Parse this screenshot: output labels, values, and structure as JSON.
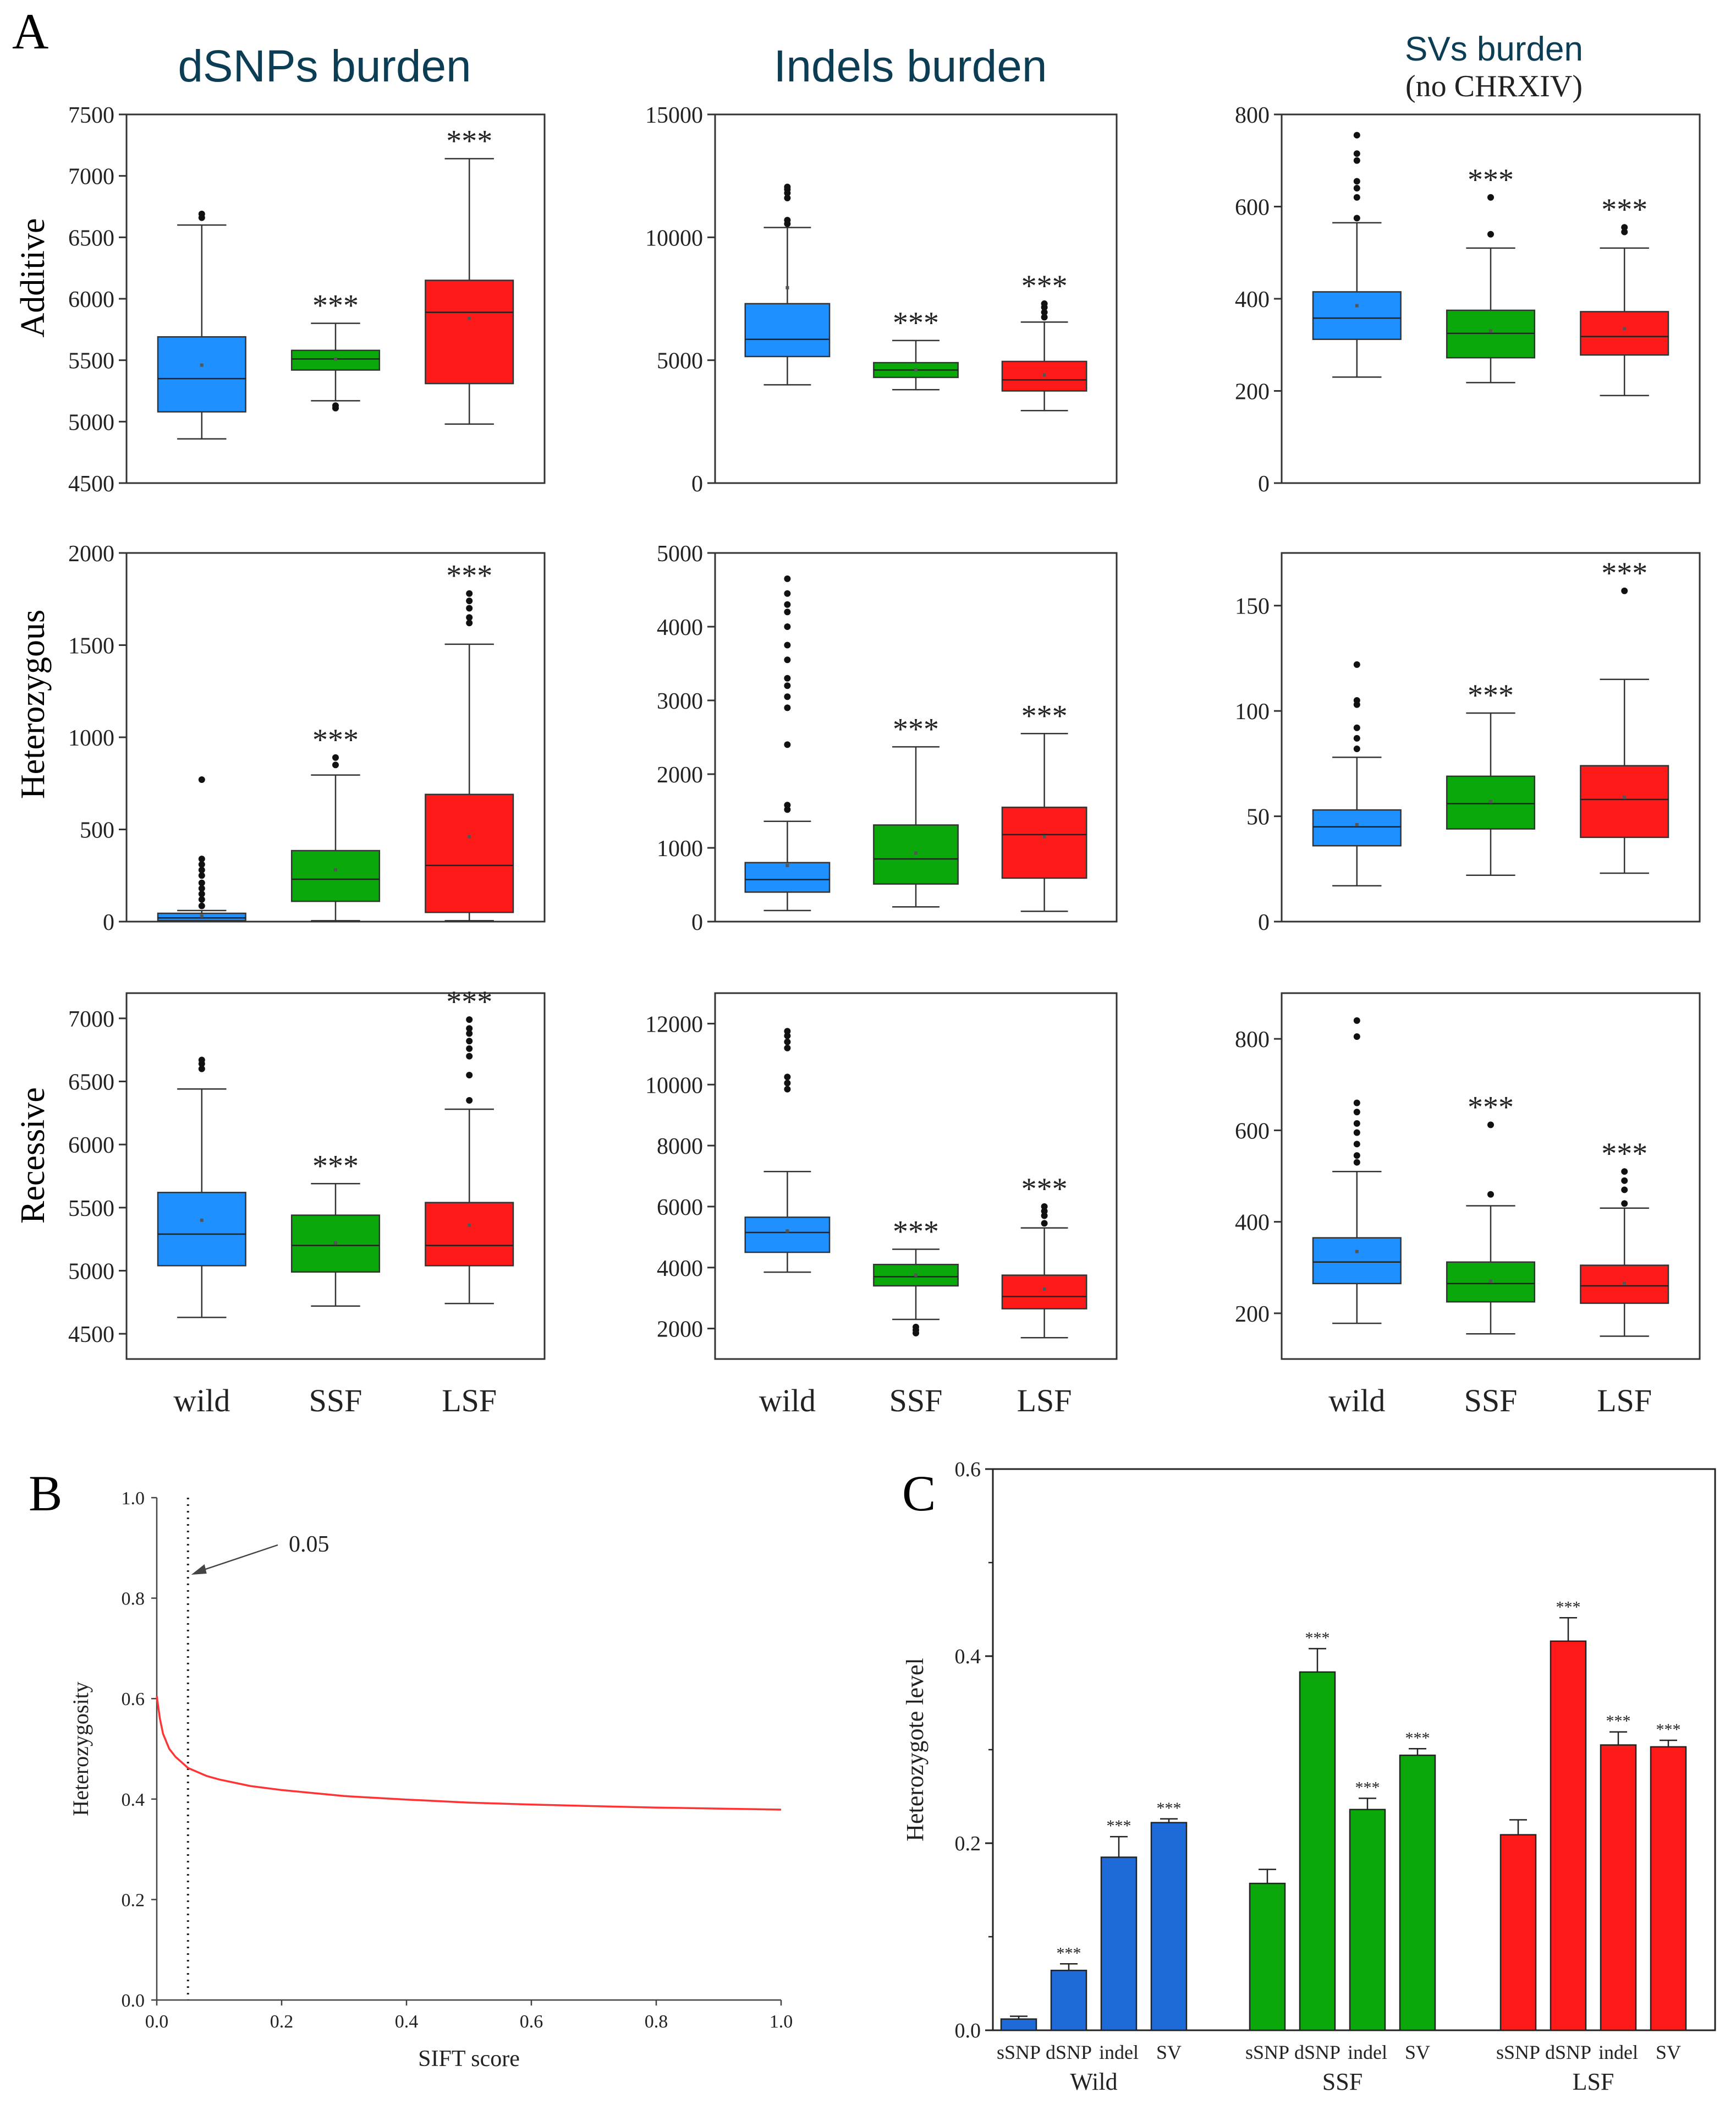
{
  "panel_labels": {
    "a": "A",
    "b": "B",
    "c": "C"
  },
  "column_titles": {
    "dsnps": "dSNPs burden",
    "indels": "Indels burden",
    "svs": "SVs burden",
    "svs_sub": "(no CHRXIV)"
  },
  "row_labels": {
    "additive": "Additive",
    "heterozygous": "Heterozygous",
    "recessive": "Recessive"
  },
  "group_labels": [
    "wild",
    "SSF",
    "LSF"
  ],
  "colors": {
    "wild": "#1e90ff",
    "ssf": "#0aa80a",
    "lsf": "#ff1a1a",
    "c_blue": "#1e6ad8",
    "c_green": "#0aa80a",
    "c_red": "#ff1a1a",
    "curve": "#ff3333"
  },
  "chart_data": [
    {
      "type": "box",
      "id": "a_add_dsnp",
      "title": "dSNPs burden",
      "ylabel": "Additive",
      "ylim": [
        4500,
        7500
      ],
      "yticks": [
        "4500",
        "5000",
        "5500",
        "6000",
        "6500",
        "7000",
        "7500"
      ],
      "categories": [
        "wild",
        "SSF",
        "LSF"
      ],
      "boxes": [
        {
          "min": 4860,
          "q1": 5080,
          "median": 5350,
          "q3": 5690,
          "max": 6600,
          "mean": 5460,
          "outliers": [
            6660,
            6690
          ],
          "sig": ""
        },
        {
          "min": 5170,
          "q1": 5420,
          "median": 5510,
          "q3": 5580,
          "max": 5800,
          "mean": 5510,
          "outliers": [
            5110,
            5130
          ],
          "sig": "***"
        },
        {
          "min": 4980,
          "q1": 5310,
          "median": 5890,
          "q3": 6150,
          "max": 7140,
          "mean": 5840,
          "outliers": [],
          "sig": "***"
        }
      ]
    },
    {
      "type": "box",
      "id": "a_add_indel",
      "title": "Indels burden",
      "ylim": [
        0,
        15000
      ],
      "yticks": [
        "0",
        "5000",
        "10000",
        "15000"
      ],
      "categories": [
        "wild",
        "SSF",
        "LSF"
      ],
      "boxes": [
        {
          "min": 4000,
          "q1": 5150,
          "median": 5850,
          "q3": 7300,
          "max": 10400,
          "mean": 7950,
          "outliers": [
            10550,
            10700,
            11600,
            11800,
            11950,
            12050
          ],
          "sig": ""
        },
        {
          "min": 3800,
          "q1": 4300,
          "median": 4600,
          "q3": 4900,
          "max": 5800,
          "mean": 4600,
          "outliers": [],
          "sig": "***"
        },
        {
          "min": 2950,
          "q1": 3750,
          "median": 4200,
          "q3": 4950,
          "max": 6550,
          "mean": 4400,
          "outliers": [
            6750,
            6950,
            7150,
            7300
          ],
          "sig": "***"
        }
      ]
    },
    {
      "type": "box",
      "id": "a_add_sv",
      "title": "SVs burden",
      "ylim": [
        0,
        800
      ],
      "yticks": [
        "0",
        "200",
        "400",
        "600",
        "800"
      ],
      "categories": [
        "wild",
        "SSF",
        "LSF"
      ],
      "boxes": [
        {
          "min": 230,
          "q1": 312,
          "median": 358,
          "q3": 415,
          "max": 565,
          "mean": 385,
          "outliers": [
            575,
            620,
            640,
            655,
            700,
            715,
            755
          ],
          "sig": ""
        },
        {
          "min": 218,
          "q1": 272,
          "median": 325,
          "q3": 375,
          "max": 510,
          "mean": 330,
          "outliers": [
            540,
            620
          ],
          "sig": "***"
        },
        {
          "min": 190,
          "q1": 278,
          "median": 318,
          "q3": 372,
          "max": 510,
          "mean": 335,
          "outliers": [
            545,
            555
          ],
          "sig": "***"
        }
      ]
    },
    {
      "type": "box",
      "id": "a_het_dsnp",
      "ylabel": "Heterozygous",
      "ylim": [
        0,
        2000
      ],
      "yticks": [
        "0",
        "500",
        "1000",
        "1500",
        "2000"
      ],
      "categories": [
        "wild",
        "SSF",
        "LSF"
      ],
      "boxes": [
        {
          "min": 0,
          "q1": 5,
          "median": 20,
          "q3": 45,
          "max": 60,
          "mean": 30,
          "outliers": [
            85,
            120,
            150,
            180,
            210,
            250,
            280,
            310,
            340,
            770
          ],
          "sig": ""
        },
        {
          "min": 5,
          "q1": 110,
          "median": 230,
          "q3": 385,
          "max": 795,
          "mean": 280,
          "outliers": [
            850,
            890
          ],
          "sig": "***"
        },
        {
          "min": 5,
          "q1": 50,
          "median": 305,
          "q3": 690,
          "max": 1505,
          "mean": 460,
          "outliers": [
            1620,
            1650,
            1700,
            1740,
            1780
          ],
          "sig": "***"
        }
      ]
    },
    {
      "type": "box",
      "id": "a_het_indel",
      "ylim": [
        0,
        5000
      ],
      "yticks": [
        "0",
        "1000",
        "2000",
        "3000",
        "4000",
        "5000"
      ],
      "categories": [
        "wild",
        "SSF",
        "LSF"
      ],
      "boxes": [
        {
          "min": 150,
          "q1": 400,
          "median": 570,
          "q3": 800,
          "max": 1360,
          "mean": 760,
          "outliers": [
            1520,
            1580,
            2400,
            2900,
            3050,
            3200,
            3300,
            3550,
            3750,
            4000,
            4200,
            4300,
            4450,
            4650
          ],
          "sig": ""
        },
        {
          "min": 200,
          "q1": 510,
          "median": 850,
          "q3": 1310,
          "max": 2370,
          "mean": 930,
          "outliers": [],
          "sig": "***"
        },
        {
          "min": 140,
          "q1": 590,
          "median": 1180,
          "q3": 1550,
          "max": 2550,
          "mean": 1150,
          "outliers": [],
          "sig": "***"
        }
      ]
    },
    {
      "type": "box",
      "id": "a_het_sv",
      "ylim": [
        0,
        175
      ],
      "yticks": [
        "0",
        "50",
        "100",
        "150"
      ],
      "categories": [
        "wild",
        "SSF",
        "LSF"
      ],
      "boxes": [
        {
          "min": 17,
          "q1": 36,
          "median": 45,
          "q3": 53,
          "max": 78,
          "mean": 46,
          "outliers": [
            82,
            87,
            92,
            103,
            105,
            122
          ],
          "sig": ""
        },
        {
          "min": 22,
          "q1": 44,
          "median": 56,
          "q3": 69,
          "max": 99,
          "mean": 57,
          "outliers": [],
          "sig": "***"
        },
        {
          "min": 23,
          "q1": 40,
          "median": 58,
          "q3": 74,
          "max": 115,
          "mean": 59,
          "outliers": [
            157
          ],
          "sig": "***"
        }
      ]
    },
    {
      "type": "box",
      "id": "a_rec_dsnp",
      "ylabel": "Recessive",
      "ylim": [
        4300,
        7200
      ],
      "yticks": [
        "4500",
        "5000",
        "5500",
        "6000",
        "6500",
        "7000"
      ],
      "categories": [
        "wild",
        "SSF",
        "LSF"
      ],
      "xlabels": [
        "wild",
        "SSF",
        "LSF"
      ],
      "boxes": [
        {
          "min": 4630,
          "q1": 5040,
          "median": 5290,
          "q3": 5620,
          "max": 6440,
          "mean": 5400,
          "outliers": [
            6600,
            6640,
            6670
          ],
          "sig": ""
        },
        {
          "min": 4720,
          "q1": 4990,
          "median": 5200,
          "q3": 5440,
          "max": 5690,
          "mean": 5220,
          "outliers": [],
          "sig": "***"
        },
        {
          "min": 4740,
          "q1": 5040,
          "median": 5200,
          "q3": 5540,
          "max": 6280,
          "mean": 5360,
          "outliers": [
            6350,
            6550,
            6700,
            6760,
            6820,
            6880,
            6920,
            6990
          ],
          "sig": "***"
        }
      ]
    },
    {
      "type": "box",
      "id": "a_rec_indel",
      "ylim": [
        1000,
        13000
      ],
      "yticks": [
        "2000",
        "4000",
        "6000",
        "8000",
        "10000",
        "12000"
      ],
      "categories": [
        "wild",
        "SSF",
        "LSF"
      ],
      "xlabels": [
        "wild",
        "SSF",
        "LSF"
      ],
      "boxes": [
        {
          "min": 3850,
          "q1": 4500,
          "median": 5150,
          "q3": 5650,
          "max": 7150,
          "mean": 5200,
          "outliers": [
            9850,
            10050,
            10250,
            11200,
            11400,
            11600,
            11750
          ],
          "sig": ""
        },
        {
          "min": 2300,
          "q1": 3400,
          "median": 3700,
          "q3": 4100,
          "max": 4600,
          "mean": 3750,
          "outliers": [
            1850,
            1950,
            2050
          ],
          "sig": "***"
        },
        {
          "min": 1700,
          "q1": 2650,
          "median": 3050,
          "q3": 3750,
          "max": 5300,
          "mean": 3300,
          "outliers": [
            5450,
            5700,
            5850,
            6000
          ],
          "sig": "***"
        }
      ]
    },
    {
      "type": "box",
      "id": "a_rec_sv",
      "ylim": [
        100,
        900
      ],
      "yticks": [
        "200",
        "400",
        "600",
        "800"
      ],
      "categories": [
        "wild",
        "SSF",
        "LSF"
      ],
      "xlabels": [
        "wild",
        "SSF",
        "LSF"
      ],
      "boxes": [
        {
          "min": 178,
          "q1": 265,
          "median": 312,
          "q3": 365,
          "max": 510,
          "mean": 335,
          "outliers": [
            530,
            545,
            570,
            595,
            615,
            640,
            660,
            805,
            840
          ],
          "sig": ""
        },
        {
          "min": 155,
          "q1": 225,
          "median": 265,
          "q3": 312,
          "max": 435,
          "mean": 270,
          "outliers": [
            460,
            612
          ],
          "sig": "***"
        },
        {
          "min": 150,
          "q1": 222,
          "median": 260,
          "q3": 305,
          "max": 430,
          "mean": 265,
          "outliers": [
            440,
            470,
            490,
            510
          ],
          "sig": "***"
        }
      ]
    },
    {
      "type": "line",
      "id": "b_curve",
      "xlabel": "SIFT score",
      "ylabel": "Heterozygosity",
      "xlim": [
        0,
        1
      ],
      "ylim": [
        0,
        1
      ],
      "xticks": [
        "0.0",
        "0.2",
        "0.4",
        "0.6",
        "0.8",
        "1.0"
      ],
      "yticks": [
        "0.0",
        "0.2",
        "0.4",
        "0.6",
        "0.8",
        "1.0"
      ],
      "threshold": 0.05,
      "annotation": "0.05",
      "x": [
        0.0,
        0.005,
        0.01,
        0.02,
        0.03,
        0.05,
        0.08,
        0.1,
        0.15,
        0.2,
        0.3,
        0.4,
        0.5,
        0.6,
        0.7,
        0.8,
        0.9,
        1.0
      ],
      "y": [
        0.605,
        0.56,
        0.53,
        0.5,
        0.484,
        0.462,
        0.446,
        0.439,
        0.426,
        0.418,
        0.406,
        0.399,
        0.393,
        0.389,
        0.386,
        0.383,
        0.381,
        0.379
      ]
    },
    {
      "type": "bar",
      "id": "c_bars",
      "ylabel": "Heterozygote level",
      "ylim": [
        0,
        0.6
      ],
      "yticks": [
        "0.0",
        "0.2",
        "0.4",
        "0.6"
      ],
      "groups": [
        "Wild",
        "SSF",
        "LSF"
      ],
      "categories": [
        "sSNP",
        "dSNP",
        "indel",
        "SV"
      ],
      "series": [
        {
          "name": "Wild",
          "values": [
            0.012,
            0.064,
            0.185,
            0.222
          ],
          "errors": [
            0.003,
            0.007,
            0.022,
            0.004
          ],
          "sig": [
            "",
            "***",
            "***",
            "***"
          ]
        },
        {
          "name": "SSF",
          "values": [
            0.157,
            0.383,
            0.236,
            0.294
          ],
          "errors": [
            0.015,
            0.025,
            0.012,
            0.007
          ],
          "sig": [
            "",
            "***",
            "***",
            "***"
          ]
        },
        {
          "name": "LSF",
          "values": [
            0.209,
            0.416,
            0.305,
            0.303
          ],
          "errors": [
            0.016,
            0.025,
            0.014,
            0.007
          ],
          "sig": [
            "",
            "***",
            "***",
            "***"
          ]
        }
      ]
    }
  ]
}
